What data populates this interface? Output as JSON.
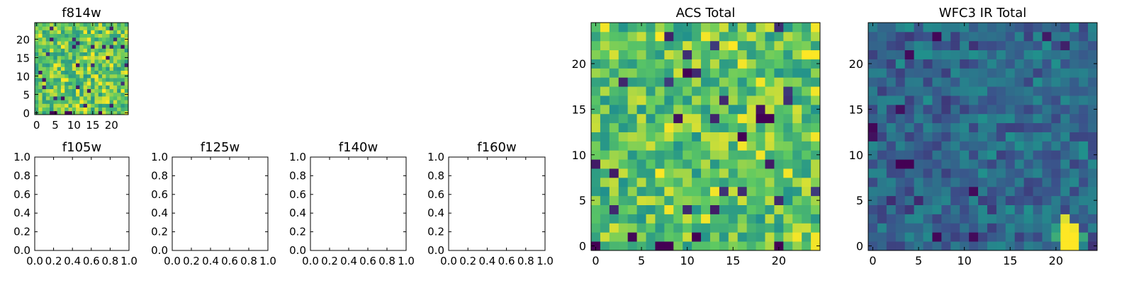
{
  "figure": {
    "description_colormap": "viridis"
  },
  "colors": {
    "viridis": [
      "#440154",
      "#3b528b",
      "#21918c",
      "#5ec962",
      "#fde725"
    ]
  },
  "chart_data": [
    {
      "type": "heatmap",
      "title": "f814w",
      "xlabel": "",
      "ylabel": "",
      "x_range": [
        -0.5,
        24.5
      ],
      "y_range": [
        -0.5,
        24.5
      ],
      "origin": "lower",
      "grid_size": [
        25,
        25
      ],
      "xticks": [
        0,
        5,
        10,
        15,
        20
      ],
      "yticks": [
        0,
        5,
        10,
        15,
        20
      ],
      "value_note": "noisy field, mostly high values (green/yellow) with a few dark pixels",
      "seed": 7,
      "base": 0.74,
      "spread": 0.22,
      "overrides": [
        {
          "i": 4,
          "j": 0,
          "v": 0.0
        },
        {
          "i": 5,
          "j": 0,
          "v": 0.0
        },
        {
          "i": 8,
          "j": 0,
          "v": 0.0
        },
        {
          "i": 9,
          "j": 0,
          "v": 0.0
        },
        {
          "i": 17,
          "j": 0,
          "v": 0.02
        },
        {
          "i": 19,
          "j": 15,
          "v": 0.05
        },
        {
          "i": 23,
          "j": 18,
          "v": 0.05
        },
        {
          "i": 11,
          "j": 13,
          "v": 0.05
        },
        {
          "i": 2,
          "j": 9,
          "v": 0.05
        },
        {
          "i": 14,
          "j": 6,
          "v": 0.08
        },
        {
          "i": 7,
          "j": 4,
          "v": 0.05
        }
      ]
    },
    {
      "type": "heatmap",
      "title": "f105w",
      "empty": true,
      "xticks": [
        0.0,
        0.2,
        0.4,
        0.6,
        0.8,
        1.0
      ],
      "yticks": [
        0.0,
        0.2,
        0.4,
        0.6,
        0.8,
        1.0
      ],
      "xtick_labels": [
        "0.0",
        "0.2",
        "0.4",
        "0.6",
        "0.8",
        "1.0"
      ],
      "ytick_labels": [
        "0.0",
        "0.2",
        "0.4",
        "0.6",
        "0.8",
        "1.0"
      ],
      "x_range": [
        0,
        1
      ],
      "y_range": [
        0,
        1
      ]
    },
    {
      "type": "heatmap",
      "title": "f125w",
      "empty": true,
      "xticks": [
        0.0,
        0.2,
        0.4,
        0.6,
        0.8,
        1.0
      ],
      "yticks": [
        0.0,
        0.2,
        0.4,
        0.6,
        0.8,
        1.0
      ],
      "xtick_labels": [
        "0.0",
        "0.2",
        "0.4",
        "0.6",
        "0.8",
        "1.0"
      ],
      "ytick_labels": [
        "0.0",
        "0.2",
        "0.4",
        "0.6",
        "0.8",
        "1.0"
      ],
      "x_range": [
        0,
        1
      ],
      "y_range": [
        0,
        1
      ]
    },
    {
      "type": "heatmap",
      "title": "f140w",
      "empty": true,
      "xticks": [
        0.0,
        0.2,
        0.4,
        0.6,
        0.8,
        1.0
      ],
      "yticks": [
        0.0,
        0.2,
        0.4,
        0.6,
        0.8,
        1.0
      ],
      "xtick_labels": [
        "0.0",
        "0.2",
        "0.4",
        "0.6",
        "0.8",
        "1.0"
      ],
      "ytick_labels": [
        "0.0",
        "0.2",
        "0.4",
        "0.6",
        "0.8",
        "1.0"
      ],
      "x_range": [
        0,
        1
      ],
      "y_range": [
        0,
        1
      ]
    },
    {
      "type": "heatmap",
      "title": "f160w",
      "empty": true,
      "xticks": [
        0.0,
        0.2,
        0.4,
        0.6,
        0.8,
        1.0
      ],
      "yticks": [
        0.0,
        0.2,
        0.4,
        0.6,
        0.8,
        1.0
      ],
      "xtick_labels": [
        "0.0",
        "0.2",
        "0.4",
        "0.6",
        "0.8",
        "1.0"
      ],
      "ytick_labels": [
        "0.0",
        "0.2",
        "0.4",
        "0.6",
        "0.8",
        "1.0"
      ],
      "x_range": [
        0,
        1
      ],
      "y_range": [
        0,
        1
      ]
    },
    {
      "type": "heatmap",
      "title": "ACS Total",
      "xlabel": "",
      "ylabel": "",
      "x_range": [
        -0.5,
        24.5
      ],
      "y_range": [
        -0.5,
        24.5
      ],
      "origin": "lower",
      "grid_size": [
        25,
        25
      ],
      "xticks": [
        0,
        5,
        10,
        15,
        20
      ],
      "yticks": [
        0,
        5,
        10,
        15,
        20
      ],
      "value_note": "noisy field, mostly green/yellow with scattered dark pixels",
      "seed": 21,
      "base": 0.72,
      "spread": 0.22,
      "overrides": [
        {
          "i": 0,
          "j": 0,
          "v": 0.0
        },
        {
          "i": 7,
          "j": 0,
          "v": 0.0
        },
        {
          "i": 8,
          "j": 0,
          "v": 0.0
        },
        {
          "i": 20,
          "j": 0,
          "v": 0.0
        },
        {
          "i": 11,
          "j": 1,
          "v": 0.0
        },
        {
          "i": 4,
          "j": 1,
          "v": 0.02
        },
        {
          "i": 16,
          "j": 12,
          "v": 0.0
        },
        {
          "i": 18,
          "j": 14,
          "v": 0.0
        },
        {
          "i": 19,
          "j": 14,
          "v": 0.0
        },
        {
          "i": 18,
          "j": 15,
          "v": 0.05
        },
        {
          "i": 10,
          "j": 19,
          "v": 0.0
        },
        {
          "i": 9,
          "j": 14,
          "v": 0.05
        },
        {
          "i": 7,
          "j": 8,
          "v": 1.0
        },
        {
          "i": 7,
          "j": 23,
          "v": 1.0
        },
        {
          "i": 15,
          "j": 22,
          "v": 1.0
        },
        {
          "i": 23,
          "j": 21,
          "v": 1.0
        },
        {
          "i": 24,
          "j": 21,
          "v": 1.0
        },
        {
          "i": 0,
          "j": 9,
          "v": 0.08
        }
      ]
    },
    {
      "type": "heatmap",
      "title": "WFC3 IR Total",
      "xlabel": "",
      "ylabel": "",
      "x_range": [
        -0.5,
        24.5
      ],
      "y_range": [
        -0.5,
        24.5
      ],
      "origin": "lower",
      "grid_size": [
        25,
        25
      ],
      "xticks": [
        0,
        5,
        10,
        15,
        20
      ],
      "yticks": [
        0,
        5,
        10,
        15,
        20
      ],
      "value_note": "mostly blue/teal field with bright yellow blob near x=21-22, y=0-3",
      "seed": 55,
      "base": 0.33,
      "spread": 0.14,
      "overrides": [
        {
          "i": 21,
          "j": 0,
          "v": 1.0
        },
        {
          "i": 22,
          "j": 0,
          "v": 1.0
        },
        {
          "i": 21,
          "j": 1,
          "v": 1.0
        },
        {
          "i": 22,
          "j": 1,
          "v": 1.0
        },
        {
          "i": 21,
          "j": 2,
          "v": 1.0
        },
        {
          "i": 22,
          "j": 2,
          "v": 0.98
        },
        {
          "i": 21,
          "j": 3,
          "v": 0.95
        },
        {
          "i": 20,
          "j": 1,
          "v": 0.62
        },
        {
          "i": 23,
          "j": 1,
          "v": 0.6
        },
        {
          "i": 20,
          "j": 2,
          "v": 0.55
        },
        {
          "i": 3,
          "j": 9,
          "v": 0.0
        },
        {
          "i": 4,
          "j": 9,
          "v": 0.0
        },
        {
          "i": 0,
          "j": 13,
          "v": 0.02
        },
        {
          "i": 0,
          "j": 12,
          "v": 0.05
        },
        {
          "i": 7,
          "j": 1,
          "v": 0.02
        },
        {
          "i": 11,
          "j": 1,
          "v": 0.03
        },
        {
          "i": 4,
          "j": 21,
          "v": 0.03
        },
        {
          "i": 7,
          "j": 23,
          "v": 0.02
        },
        {
          "i": 3,
          "j": 15,
          "v": 0.05
        },
        {
          "i": 11,
          "j": 6,
          "v": 0.03
        }
      ]
    }
  ]
}
